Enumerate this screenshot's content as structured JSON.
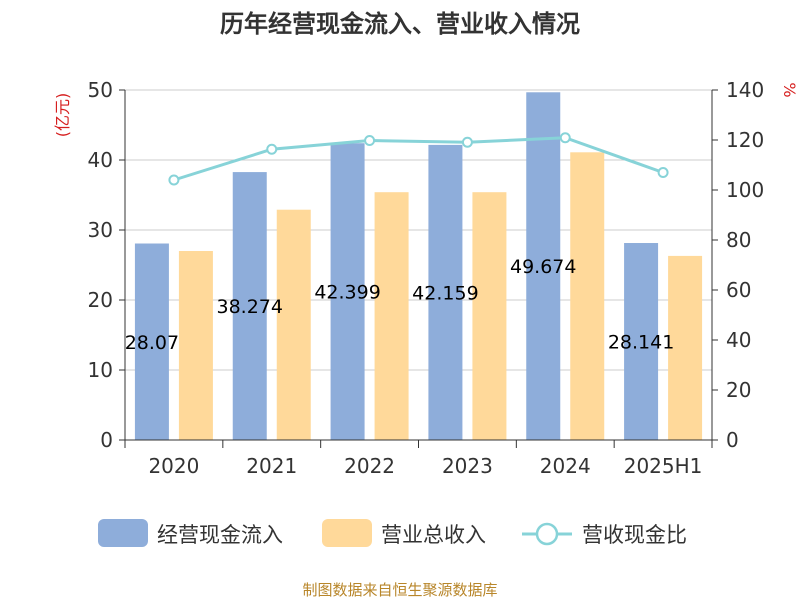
{
  "chart_data": {
    "type": "bar",
    "title": "历年经营现金流入、营业收入情况",
    "categories": [
      "2020",
      "2021",
      "2022",
      "2023",
      "2024",
      "2025H1"
    ],
    "y_left": {
      "unit": "(亿元)",
      "min": 0,
      "max": 50,
      "ticks": [
        0,
        10,
        20,
        30,
        40,
        50
      ]
    },
    "y_right": {
      "unit": "%",
      "min": 0,
      "max": 140,
      "ticks": [
        0,
        20,
        40,
        60,
        80,
        100,
        120,
        140
      ]
    },
    "series": [
      {
        "name": "经营现金流入",
        "type": "bar",
        "axis": "left",
        "color": "#8eadda",
        "values": [
          28.07,
          38.274,
          42.399,
          42.159,
          49.674,
          28.141
        ],
        "labels": [
          "28.07",
          "38.274",
          "42.399",
          "42.159",
          "49.674",
          "28.141"
        ]
      },
      {
        "name": "营业总收入",
        "type": "bar",
        "axis": "left",
        "color": "#ffd99a",
        "values": [
          27.0,
          32.9,
          35.4,
          35.4,
          41.1,
          26.3
        ]
      },
      {
        "name": "营收现金比",
        "type": "line",
        "axis": "right",
        "color": "#87d3d8",
        "values": [
          104.0,
          116.3,
          119.8,
          119.1,
          120.9,
          107.0
        ]
      }
    ],
    "grid": true,
    "legend_position": "bottom"
  },
  "footer": {
    "source": "制图数据来自恒生聚源数据库"
  }
}
